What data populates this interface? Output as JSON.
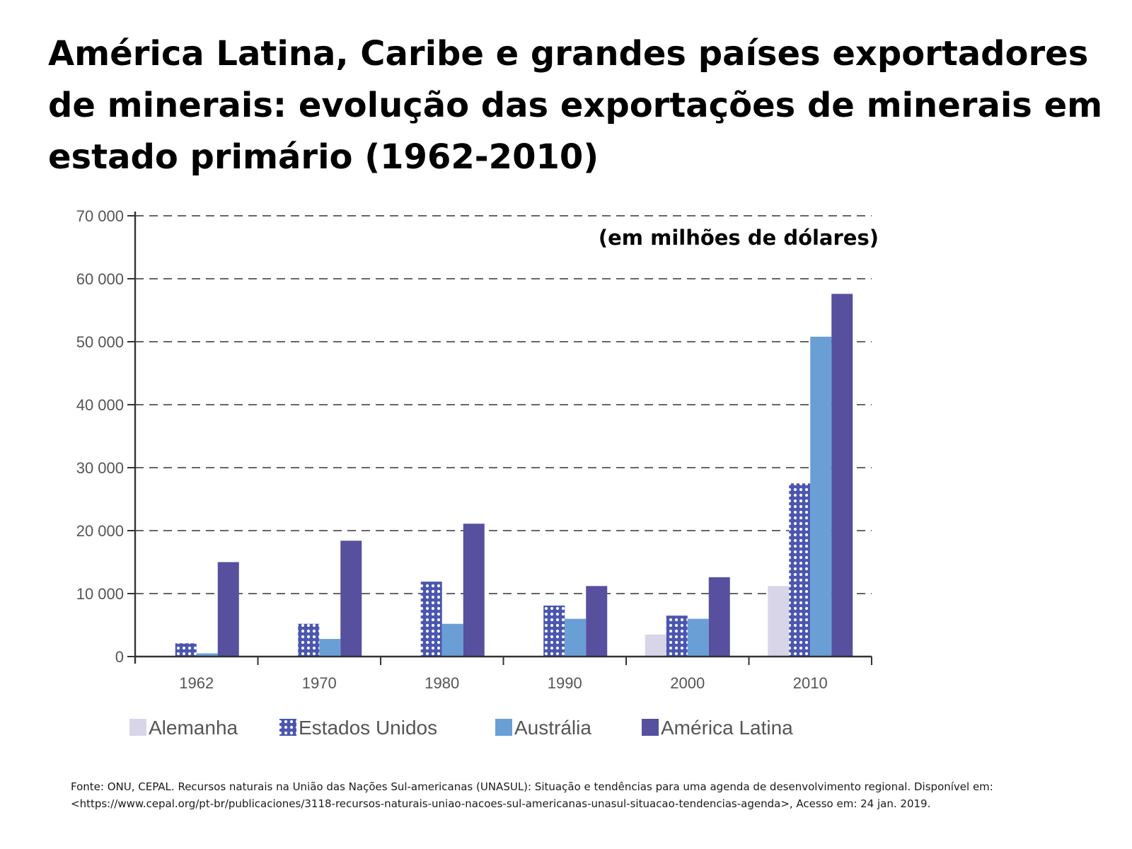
{
  "title": "América Latina, Caribe e grandes países exportadores de minerais: evolução das exportações de minerais em estado primário (1962-2010)",
  "source": "Fonte: ONU, CEPAL. Recursos naturais na União das Nações Sul-americanas (UNASUL): Situação e tendências para uma agenda de desenvolvimento regional. Disponível em: <https://www.cepal.org/pt-br/publicaciones/3118-recursos-naturais-uniao-nacoes-sul-americanas-unasul-situacao-tendencias-agenda>, Acesso em: 24 jan. 2019.",
  "chart_data": {
    "type": "bar",
    "unit_label": "(em milhões de dólares)",
    "categories": [
      "1962",
      "1970",
      "1980",
      "1990",
      "2000",
      "2010"
    ],
    "ylim": [
      0,
      70000
    ],
    "yticks": [
      0,
      10000,
      20000,
      30000,
      40000,
      50000,
      60000,
      70000
    ],
    "ytick_labels": [
      "0",
      "10 000",
      "20 000",
      "30 000",
      "40 000",
      "50 000",
      "60 000",
      "70 000"
    ],
    "grid": true,
    "legend_position": "bottom",
    "series": [
      {
        "name": "Alemanha",
        "color": "#d9d5e8",
        "pattern": "solid",
        "values": [
          0,
          0,
          0,
          0,
          3500,
          11200
        ]
      },
      {
        "name": "Estados Unidos",
        "color": "#4a56b0",
        "pattern": "dotted",
        "values": [
          2100,
          5200,
          11900,
          8100,
          6500,
          27500
        ]
      },
      {
        "name": "Austrália",
        "color": "#6a9fd6",
        "pattern": "solid",
        "values": [
          500,
          2800,
          5200,
          6000,
          6000,
          50800
        ]
      },
      {
        "name": "América Latina",
        "color": "#56509e",
        "pattern": "solid",
        "values": [
          15000,
          18400,
          21100,
          11200,
          12600,
          57600
        ]
      }
    ]
  }
}
